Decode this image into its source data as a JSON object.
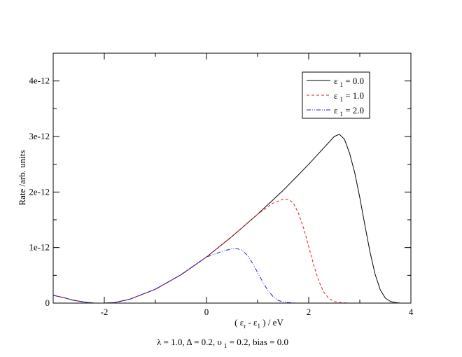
{
  "chart_data": {
    "type": "line",
    "title": "",
    "xlabel": {
      "prefix": "( ε",
      "sub1": "r",
      "mid": " - ε",
      "sub2": "1",
      "suffix": " ) / eV"
    },
    "ylabel": "Rate /arb. units",
    "xlim": [
      -3,
      4
    ],
    "ylim": [
      0,
      4.5e-12
    ],
    "x_ticks": [
      {
        "value": -2,
        "label": "-2"
      },
      {
        "value": 0,
        "label": "0"
      },
      {
        "value": 2,
        "label": "2"
      },
      {
        "value": 4,
        "label": "4"
      }
    ],
    "y_ticks": [
      {
        "value": 0,
        "label": "0"
      },
      {
        "value": 1e-12,
        "label": "1e-12"
      },
      {
        "value": 2e-12,
        "label": "2e-12"
      },
      {
        "value": 3e-12,
        "label": "3e-12"
      },
      {
        "value": 4e-12,
        "label": "4e-12"
      }
    ],
    "grid": false,
    "legend_position": "top-right",
    "series": [
      {
        "name": {
          "sym": "ε",
          "sub": "1",
          "rest": " = 0.0"
        },
        "color": "#000000",
        "dash": "solid",
        "x": [
          -3.0,
          -2.8,
          -2.6,
          -2.4,
          -2.2,
          -2.0,
          -1.8,
          -1.5,
          -1.0,
          -0.5,
          0.0,
          0.5,
          1.0,
          1.5,
          1.8,
          2.0,
          2.2,
          2.4,
          2.5,
          2.6,
          2.7,
          2.8,
          2.9,
          3.0,
          3.1,
          3.2,
          3.3,
          3.4,
          3.5,
          3.6,
          3.7,
          3.8,
          4.0
        ],
        "y": [
          1.4e-13,
          1e-13,
          5e-14,
          2e-14,
          0.0,
          0.0,
          1e-14,
          7e-14,
          2.5e-13,
          5.1e-13,
          8.3e-13,
          1.2e-12,
          1.6e-12,
          2.03e-12,
          2.31e-12,
          2.5e-12,
          2.7e-12,
          2.9e-12,
          3e-12,
          3.04e-12,
          2.95e-12,
          2.7e-12,
          2.35e-12,
          1.9e-12,
          1.4e-12,
          9.2e-13,
          5.2e-13,
          2.4e-13,
          9e-14,
          3e-14,
          1e-14,
          0.0,
          0.0
        ]
      },
      {
        "name": {
          "sym": "ε",
          "sub": "1",
          "rest": " = 1.0"
        },
        "color": "#e41a1c",
        "dash": "dashed",
        "x": [
          -3.0,
          -2.8,
          -2.6,
          -2.4,
          -2.2,
          -2.0,
          -1.8,
          -1.5,
          -1.0,
          -0.5,
          0.0,
          0.5,
          1.0,
          1.3,
          1.5,
          1.6,
          1.7,
          1.8,
          1.9,
          2.0,
          2.1,
          2.2,
          2.3,
          2.4,
          2.5,
          2.6,
          2.8
        ],
        "y": [
          1.4e-13,
          1e-13,
          5e-14,
          2e-14,
          0.0,
          0.0,
          1e-14,
          7e-14,
          2.5e-13,
          5.1e-13,
          8.3e-13,
          1.2e-12,
          1.6e-12,
          1.8e-12,
          1.87e-12,
          1.87e-12,
          1.8e-12,
          1.62e-12,
          1.35e-12,
          1.02e-12,
          6.8e-13,
          3.9e-13,
          1.9e-13,
          8e-14,
          3e-14,
          1e-14,
          0.0
        ]
      },
      {
        "name": {
          "sym": "ε",
          "sub": "1",
          "rest": " = 2.0"
        },
        "color": "#1f1fd6",
        "dash": "dashdot",
        "x": [
          -3.0,
          -2.8,
          -2.6,
          -2.4,
          -2.2,
          -2.0,
          -1.8,
          -1.5,
          -1.0,
          -0.5,
          0.0,
          0.3,
          0.5,
          0.6,
          0.7,
          0.8,
          0.9,
          1.0,
          1.1,
          1.2,
          1.3,
          1.4,
          1.5,
          1.6,
          1.8
        ],
        "y": [
          1.4e-13,
          1e-13,
          5e-14,
          2e-14,
          0.0,
          0.0,
          1e-14,
          7e-14,
          2.5e-13,
          5.1e-13,
          8.3e-13,
          9.3e-13,
          9.8e-13,
          9.8e-13,
          9.5e-13,
          8.6e-13,
          7.2e-13,
          5.5e-13,
          3.8e-13,
          2.3e-13,
          1.2e-13,
          5e-14,
          2e-14,
          1e-14,
          0.0
        ]
      }
    ],
    "caption": {
      "part1": "λ = 1.0, Δ = 0.2, υ",
      "sub": "1",
      "part2": " = 0.2,  bias = 0.0"
    }
  }
}
